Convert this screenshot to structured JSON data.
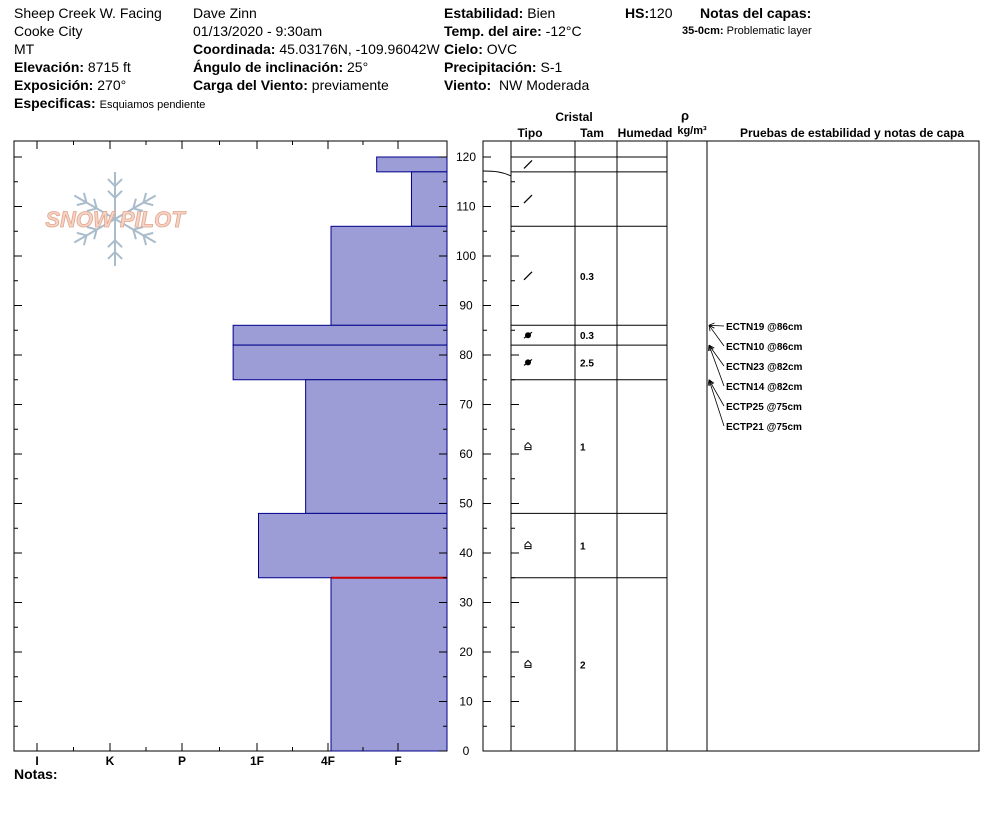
{
  "header": {
    "location": "Sheep Creek W. Facing",
    "city": "Cooke City",
    "state": "MT",
    "elevation_label": "Elevación:",
    "elevation": "8715 ft",
    "aspect_label": "Exposición:",
    "aspect": "270°",
    "specifics_label": "Especificas:",
    "specifics": "Esquiamos pendiente",
    "observer": "Dave Zinn",
    "datetime": "01/13/2020 - 9:30am",
    "coord_label": "Coordinada:",
    "coord": "45.03176N, -109.96042W",
    "slope_label": "Ángulo de inclinación:",
    "slope": "25°",
    "wind_load_label": "Carga del Viento:",
    "wind_load": "previamente",
    "stability_label": "Estabilidad:",
    "stability": "Bien",
    "air_temp_label": "Temp. del aire:",
    "air_temp": "-12°C",
    "sky_label": "Cielo:",
    "sky": "OVC",
    "precip_label": "Precipitación:",
    "precip": "S-1",
    "wind_label": "Viento:",
    "wind": "NW Moderada",
    "hs_label": "HS:",
    "hs": "120",
    "layer_notes_label": "Notas del capas:",
    "layer_note_depth": "35-0cm:",
    "layer_note_text": "Problematic layer",
    "notes_label": "Notas:"
  },
  "columns": {
    "crystal": "Cristal",
    "type": "Tipo",
    "size": "Tam",
    "moisture": "Humedad",
    "rho": "ρ",
    "density_unit": "kg/m³",
    "tests": "Pruebas de estabilidad y notas de capa"
  },
  "logo": {
    "text": "SNOW PILOT"
  },
  "colors": {
    "layer_fill": "#9c9cd6",
    "layer_stroke": "#00008b",
    "problem_layer": "#cc0000"
  },
  "chart_data": {
    "type": "bar",
    "orientation": "horizontal",
    "hardness_ticks": [
      "I",
      "K",
      "P",
      "1F",
      "4F",
      "F"
    ],
    "height_ticks": [
      0,
      10,
      20,
      30,
      40,
      50,
      60,
      70,
      80,
      90,
      100,
      110,
      120
    ],
    "ylim": [
      0,
      120
    ],
    "layers": [
      {
        "top": 120,
        "bottom": 117,
        "hardness": 0.97,
        "grain": "decomposing",
        "size": ""
      },
      {
        "top": 117,
        "bottom": 106,
        "hardness": 0.49,
        "grain": "decomposing",
        "size": ""
      },
      {
        "top": 106,
        "bottom": 86,
        "hardness": 1.6,
        "grain": "decomposing",
        "size": "0.3"
      },
      {
        "top": 86,
        "bottom": 82,
        "hardness": 2.95,
        "grain": "surface-hoar",
        "size": "0.3"
      },
      {
        "top": 82,
        "bottom": 75,
        "hardness": 2.95,
        "grain": "surface-hoar",
        "size": "2.5"
      },
      {
        "top": 75,
        "bottom": 48,
        "hardness": 1.95,
        "grain": "depth-hoar",
        "size": "1"
      },
      {
        "top": 48,
        "bottom": 35,
        "hardness": 2.6,
        "grain": "depth-hoar",
        "size": "1"
      },
      {
        "top": 35,
        "bottom": 0,
        "hardness": 1.6,
        "grain": "depth-hoar",
        "size": "2"
      }
    ],
    "problem_layer_height": 35,
    "temperature_profile_visible": true,
    "tests": [
      {
        "label": "ECTN19 @86cm",
        "depth": 86
      },
      {
        "label": "ECTN10 @86cm",
        "depth": 86
      },
      {
        "label": "ECTN23 @82cm",
        "depth": 82
      },
      {
        "label": "ECTN14 @82cm",
        "depth": 82
      },
      {
        "label": "ECTP25 @75cm",
        "depth": 75
      },
      {
        "label": "ECTP21 @75cm",
        "depth": 75
      }
    ]
  }
}
